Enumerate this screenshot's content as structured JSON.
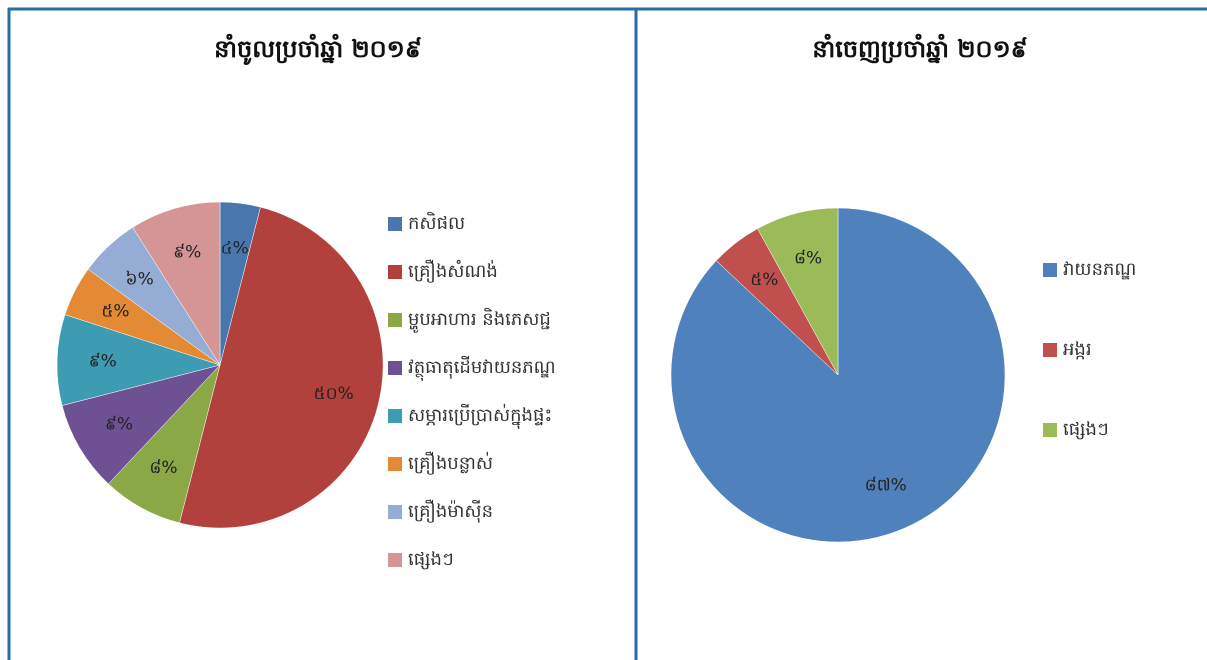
{
  "chart_data": [
    {
      "type": "pie",
      "title": "នាំចូលប្រចាំឆ្នាំ ២០១៩",
      "categories": [
        "កសិផល",
        "គ្រឿងសំណង់",
        "ម្ហូបអាហារ និងភេសជ្ជ",
        "វត្ថុធាតុដើមវាយនភណ្ឌ",
        "សម្ភារប្រើប្រាស់ក្នុងផ្ទះ",
        "គ្រឿងបន្លាស់",
        "គ្រឿងម៉ាស៊ីន",
        "ផ្សេងៗ"
      ],
      "values": [
        4,
        50,
        8,
        9,
        9,
        5,
        6,
        9
      ],
      "value_labels": [
        "៤%",
        "៥០%",
        "៨%",
        "៩%",
        "៩%",
        "៥%",
        "៦%",
        "៩%"
      ],
      "colors": [
        "#4a76ae",
        "#b2403c",
        "#8aa845",
        "#6e5193",
        "#3d9bb2",
        "#e48a34",
        "#95acd4",
        "#d59594"
      ]
    },
    {
      "type": "pie",
      "title": "នាំចេញប្រចាំឆ្នាំ ២០១៩",
      "categories": [
        "វាយនភណ្ឌ",
        "អង្ករ",
        "ផ្សេងៗ"
      ],
      "values": [
        87,
        5,
        8
      ],
      "value_labels": [
        "៨៧%",
        "៥%",
        "៨%"
      ],
      "colors": [
        "#4f81bd",
        "#c0504d",
        "#9bbb59"
      ]
    }
  ]
}
